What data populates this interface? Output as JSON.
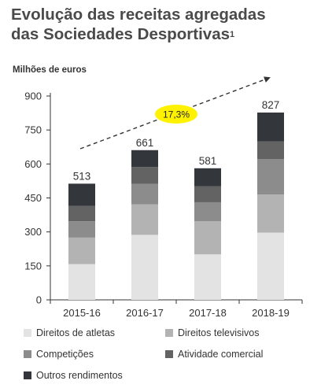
{
  "title": {
    "line1": "Evolução das receitas agregadas",
    "line2": "das Sociedades Desportivas",
    "footnote": "1"
  },
  "chart_data": {
    "type": "bar",
    "stacked": true,
    "units_label": "Milhões de euros",
    "categories": [
      "2015-16",
      "2016-17",
      "2017-18",
      "2018-19"
    ],
    "ylim": [
      0,
      900
    ],
    "yticks": [
      0,
      150,
      300,
      450,
      600,
      750,
      900
    ],
    "grid": false,
    "legend_position": "bottom",
    "series": [
      {
        "name": "Direitos de atletas",
        "color": "#e3e3e3",
        "values": [
          158,
          287,
          201,
          297
        ]
      },
      {
        "name": "Direitos televisivos",
        "color": "#b3b3b3",
        "values": [
          117,
          135,
          146,
          168
        ]
      },
      {
        "name": "Competições",
        "color": "#8c8c8c",
        "values": [
          72,
          90,
          84,
          157
        ]
      },
      {
        "name": "Atividade comercial",
        "color": "#636363",
        "values": [
          68,
          75,
          70,
          78
        ]
      },
      {
        "name": "Outros rendimentos",
        "color": "#33373c",
        "values": [
          98,
          74,
          80,
          127
        ]
      }
    ],
    "totals": [
      "513",
      "661",
      "581",
      "827"
    ],
    "annotation": {
      "text": "17,3%",
      "color": "#fff200"
    }
  }
}
